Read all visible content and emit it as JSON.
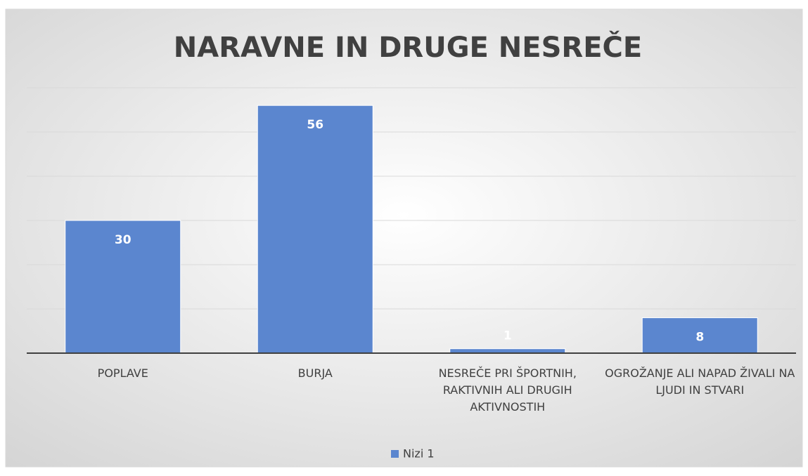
{
  "chart_data": {
    "type": "bar",
    "title": "NARAVNE IN DRUGE NESREČE",
    "categories": [
      "POPLAVE",
      "BURJA",
      "NESREČE PRI ŠPORTNIH, RAKTIVNIH ALI DRUGIH AKTIVNOSTIH",
      "OGROŽANJE ALI NAPAD ŽIVALI NA LJUDI IN STVARI"
    ],
    "series": [
      {
        "name": "Nizi 1",
        "color": "#5b86cf",
        "values": [
          30,
          56,
          1,
          8
        ]
      }
    ],
    "ylim": [
      0,
      60
    ],
    "yticks": [
      0,
      10,
      20,
      30,
      40,
      50,
      60
    ],
    "grid": true,
    "legend": "bottom"
  }
}
